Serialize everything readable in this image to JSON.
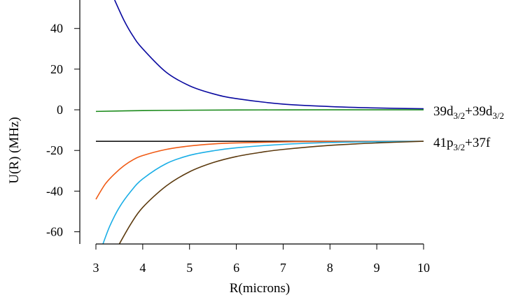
{
  "chart_data": {
    "type": "line",
    "title": "",
    "xlabel": "R(microns)",
    "ylabel": "U(R) (MHz)",
    "xlim": [
      3,
      10
    ],
    "ylim": [
      -66,
      54
    ],
    "xticks": [
      3,
      4,
      5,
      6,
      7,
      8,
      9,
      10
    ],
    "yticks": [
      -60,
      -40,
      -20,
      0,
      20,
      40
    ],
    "xtick_labels": [
      "3",
      "4",
      "5",
      "6",
      "7",
      "8",
      "9",
      "10"
    ],
    "ytick_labels": [
      "-60",
      "-40",
      "-20",
      "0",
      "20",
      "40"
    ],
    "grid": false,
    "annotations": [
      {
        "base1": "39d",
        "sub1": "3/2",
        "mid": "+39d",
        "sub2": "3/2",
        "near_y": 0
      },
      {
        "base1": "41p",
        "sub1": "3/2",
        "mid": "+37f",
        "sub2": "",
        "near_y": -15.5
      }
    ],
    "series": [
      {
        "color": "#0a0aa0",
        "x": [
          3.4,
          3.6,
          3.8,
          4.0,
          4.5,
          5.0,
          5.5,
          6.0,
          7.0,
          8.0,
          9.0,
          10.0
        ],
        "y": [
          54,
          44,
          36,
          30,
          18.5,
          11.8,
          7.9,
          5.5,
          2.8,
          1.6,
          0.9,
          0.5
        ]
      },
      {
        "color": "#1a8a1a",
        "x": [
          3.0,
          4.0,
          5.0,
          6.0,
          7.0,
          8.0,
          9.0,
          10.0
        ],
        "y": [
          -0.8,
          -0.4,
          -0.2,
          -0.1,
          -0.05,
          -0.02,
          0,
          0
        ]
      },
      {
        "color": "#000000",
        "x": [
          3.0,
          4.0,
          5.0,
          6.0,
          7.0,
          8.0,
          9.0,
          10.0
        ],
        "y": [
          -15.5,
          -15.5,
          -15.5,
          -15.5,
          -15.5,
          -15.5,
          -15.5,
          -15.5
        ]
      },
      {
        "color": "#f05a14",
        "x": [
          3.0,
          3.2,
          3.4,
          3.6,
          3.8,
          4.0,
          4.5,
          5.0,
          5.5,
          6.0,
          7.0,
          8.0,
          10.0
        ],
        "y": [
          -44,
          -36.5,
          -31.5,
          -27.5,
          -24.5,
          -22.5,
          -19.5,
          -17.8,
          -16.8,
          -16.3,
          -15.8,
          -15.6,
          -15.5
        ]
      },
      {
        "color": "#1aaee6",
        "x": [
          3.15,
          3.3,
          3.5,
          3.75,
          4.0,
          4.5,
          5.0,
          5.5,
          6.0,
          7.0,
          8.0,
          9.0,
          10.0
        ],
        "y": [
          -66,
          -57,
          -48,
          -40,
          -34,
          -26.5,
          -22.4,
          -20.2,
          -18.7,
          -17.0,
          -16.1,
          -15.7,
          -15.5
        ]
      },
      {
        "color": "#5c3a0e",
        "x": [
          3.5,
          3.75,
          4.0,
          4.5,
          5.0,
          5.5,
          6.0,
          6.5,
          7.0,
          8.0,
          9.0,
          10.0
        ],
        "y": [
          -66,
          -56,
          -48,
          -37.5,
          -30.5,
          -26,
          -23,
          -21,
          -19.5,
          -17.5,
          -16.3,
          -15.5
        ]
      }
    ]
  }
}
